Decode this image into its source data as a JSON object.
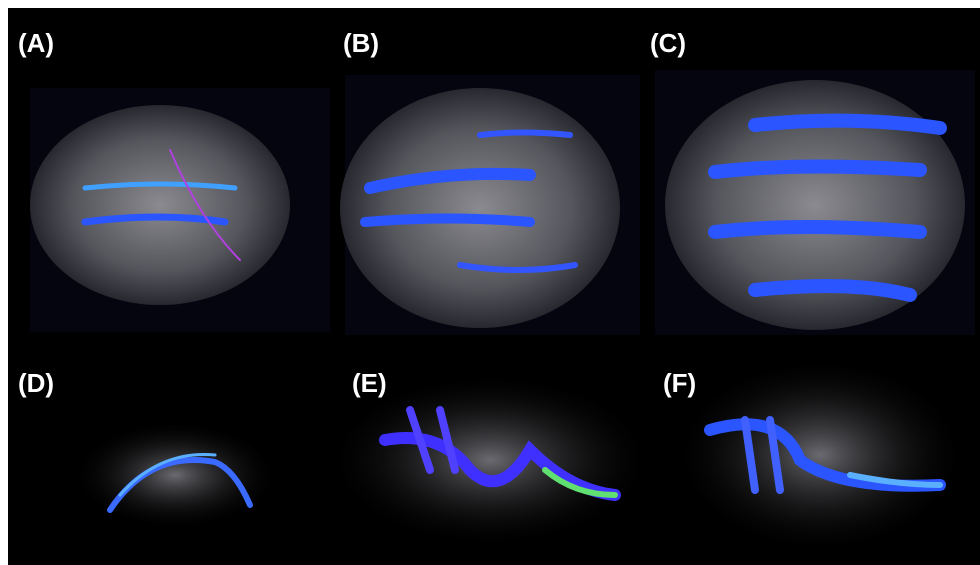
{
  "panels": [
    {
      "label": "(A)"
    },
    {
      "label": "(B)"
    },
    {
      "label": "(C)"
    },
    {
      "label": "(D)"
    },
    {
      "label": "(E)"
    },
    {
      "label": "(F)"
    }
  ]
}
